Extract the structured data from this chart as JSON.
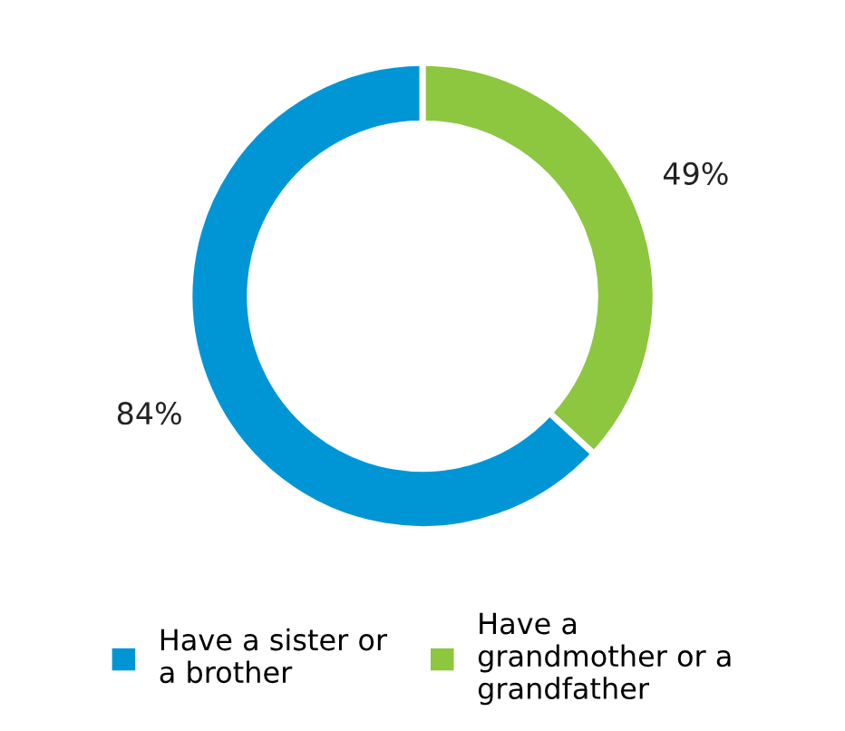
{
  "chart_data": {
    "type": "donut",
    "categories": [
      "Have a sister or a brother",
      "Have a grandmother or a grandfather"
    ],
    "values": [
      84,
      49
    ],
    "colors": [
      "#0096d6",
      "#8dc63f"
    ],
    "value_labels": [
      "84%",
      "49%"
    ],
    "legend": "bottom"
  }
}
